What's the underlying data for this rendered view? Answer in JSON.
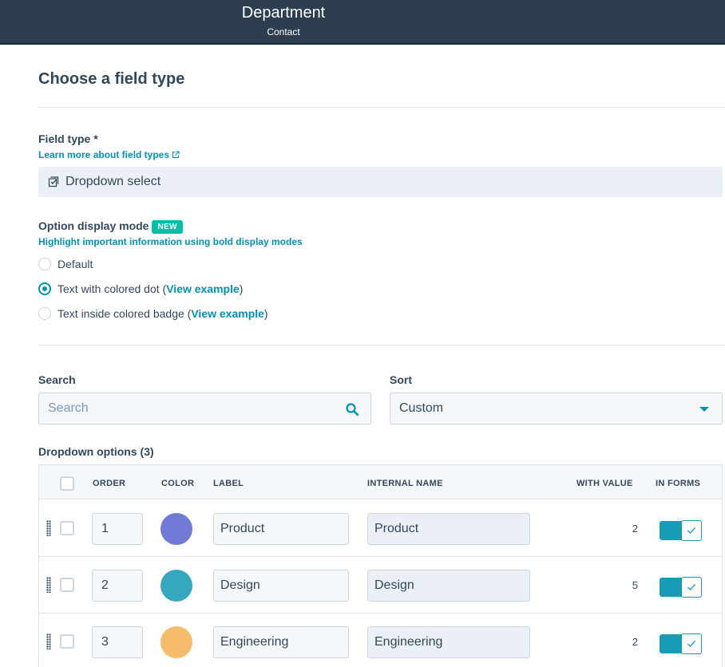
{
  "header": {
    "title": "Department",
    "subtitle": "Contact"
  },
  "section": {
    "title": "Choose a field type"
  },
  "field_type": {
    "label": "Field type *",
    "help_link": "Learn more about field types",
    "value": "Dropdown select",
    "value_icon": "dropdown-select-icon"
  },
  "display_mode": {
    "label": "Option display mode",
    "badge": "NEW",
    "help": "Highlight important information using bold display modes",
    "options": [
      {
        "text": "Default",
        "prefix": "",
        "link": "",
        "suffix": "",
        "selected": false
      },
      {
        "text": "Text with colored dot",
        "prefix": " (",
        "link": "View example",
        "suffix": ")",
        "selected": true
      },
      {
        "text": "Text inside colored badge",
        "prefix": " (",
        "link": "View example",
        "suffix": ")",
        "selected": false
      }
    ]
  },
  "search": {
    "label": "Search",
    "placeholder": "Search",
    "icon": "search-icon"
  },
  "sort": {
    "label": "Sort",
    "value": "Custom"
  },
  "options_table": {
    "title": "Dropdown options (3)",
    "columns": [
      "ORDER",
      "COLOR",
      "LABEL",
      "INTERNAL NAME",
      "WITH VALUE",
      "IN FORMS"
    ],
    "rows": [
      {
        "order": "1",
        "color": "#6f7bd6",
        "label": "Product",
        "internal": "Product",
        "with_value": "2",
        "in_forms": true
      },
      {
        "order": "2",
        "color": "#35a8bf",
        "label": "Design",
        "internal": "Design",
        "with_value": "5",
        "in_forms": true
      },
      {
        "order": "3",
        "color": "#f5bd6b",
        "label": "Engineering",
        "internal": "Engineering",
        "with_value": "2",
        "in_forms": true
      }
    ]
  },
  "colors": {
    "accent": "#0091ae",
    "header_bg": "#2d3e50",
    "new_badge": "#00bda5"
  }
}
